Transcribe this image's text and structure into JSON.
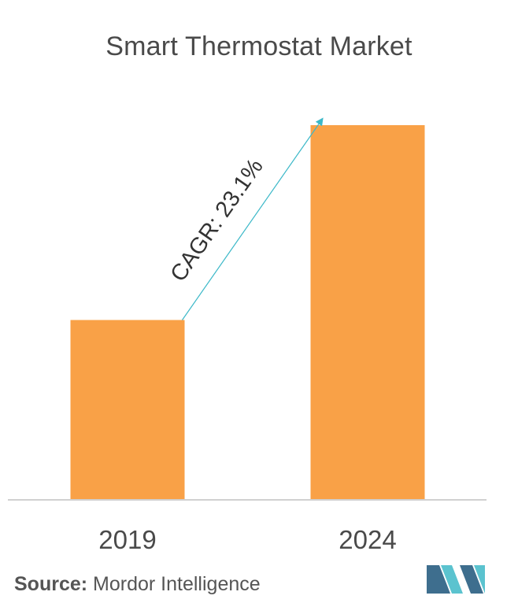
{
  "chart_data": {
    "type": "bar",
    "title": "Smart Thermostat Market",
    "categories": [
      "2019",
      "2024"
    ],
    "values": [
      0.48,
      1.0
    ],
    "ylim": [
      0,
      1.0
    ],
    "grid": false,
    "annotation": "CAGR: 23.1%",
    "colors": {
      "bar": "#F9A147",
      "arrow": "#3BB8C8",
      "baseline": "#d0d0d0",
      "text": "#4a4a4a"
    }
  },
  "footer": {
    "source_label": "Source:",
    "source_text": " Mordor Intelligence"
  },
  "logo": {
    "icon": "mordor-intelligence-logo",
    "colors": [
      "#3E6E8E",
      "#5BC3CF"
    ]
  }
}
